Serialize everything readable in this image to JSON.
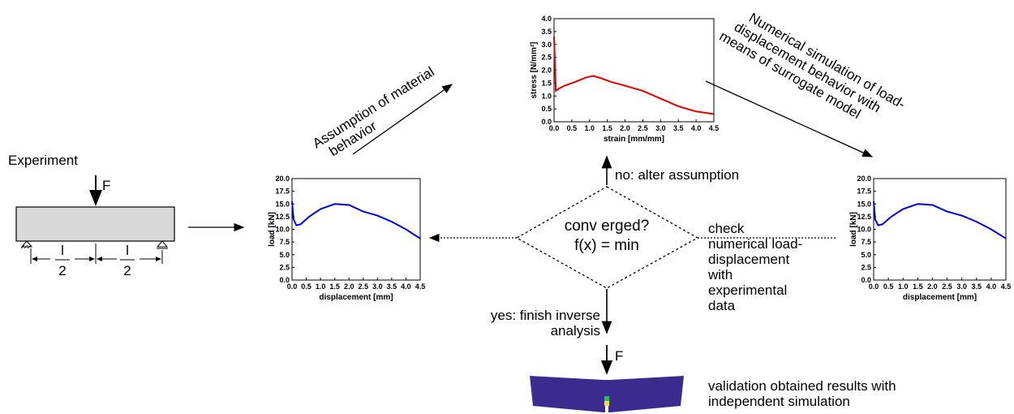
{
  "experiment": {
    "title": "Experiment",
    "force": "F",
    "spans": [
      {
        "numerator": "l",
        "denominator": "2"
      },
      {
        "numerator": "l",
        "denominator": "2"
      }
    ]
  },
  "steps": {
    "assumption": [
      "Assumption of material",
      "behavior"
    ],
    "simulation": [
      "Numerical simulation of load-",
      "displacement behavior with",
      "means of surrogate model"
    ],
    "no_branch": "no: alter assumption",
    "decision": [
      "conv erged?",
      "f(x) = min"
    ],
    "check": [
      "check",
      "numerical load-",
      "displacement",
      "with",
      "experimental",
      "data"
    ],
    "yes_branch": [
      "yes: finish inverse",
      "analysis"
    ],
    "validation_force": "F",
    "validation": [
      "validation obtained results with",
      "independent simulation"
    ]
  },
  "plots": [
    {
      "type": "line",
      "xlabel": "strain [mm/mm]",
      "ylabel": "stress [N/mm²]",
      "color": "#e00000",
      "x": [
        0,
        0.05,
        0.15,
        0.3,
        0.6,
        0.9,
        1.1,
        1.3,
        1.6,
        2.0,
        2.5,
        3.0,
        3.5,
        4.0,
        4.5
      ],
      "values": [
        3.3,
        1.2,
        1.3,
        1.4,
        1.55,
        1.72,
        1.78,
        1.7,
        1.55,
        1.4,
        1.2,
        0.9,
        0.6,
        0.4,
        0.3
      ],
      "xlim": [
        0,
        4.5
      ],
      "ylim": [
        0,
        4
      ],
      "xticks": [
        {
          "value": 0,
          "label": "0.0"
        },
        0.5,
        {
          "value": 1,
          "label": "1.0"
        },
        1.5,
        {
          "value": 2,
          "label": "2.0"
        },
        2.5,
        {
          "value": 3,
          "label": "3.0"
        },
        3.5,
        {
          "value": 4,
          "label": "4.0"
        },
        4.5
      ],
      "yticks": [
        {
          "value": 0,
          "label": "0.0"
        },
        0.5,
        {
          "value": 1,
          "label": "1.0"
        },
        1.5,
        {
          "value": 2,
          "label": "2.0"
        },
        2.5,
        {
          "value": 3,
          "label": "3.0"
        },
        3.5,
        {
          "value": 4,
          "label": "4.0"
        }
      ]
    },
    {
      "type": "line",
      "xlabel": "displacement [mm]",
      "ylabel": "load [kN]",
      "color": "#0000dd",
      "x": [
        0,
        0.05,
        0.15,
        0.3,
        0.6,
        1.0,
        1.5,
        2.0,
        2.5,
        3.0,
        3.5,
        4.0,
        4.5
      ],
      "values": [
        15.5,
        12,
        10.8,
        11,
        12.5,
        14,
        15,
        14.8,
        13.5,
        12.7,
        11.5,
        10,
        8.2
      ],
      "xlim": [
        0,
        4.5
      ],
      "ylim": [
        0,
        20
      ],
      "xticks": [
        {
          "value": 0,
          "label": "0.0"
        },
        0.5,
        {
          "value": 1,
          "label": "1.0"
        },
        1.5,
        {
          "value": 2,
          "label": "2.0"
        },
        2.5,
        {
          "value": 3,
          "label": "3.0"
        },
        3.5,
        {
          "value": 4,
          "label": "4.0"
        },
        4.5
      ],
      "yticks": [
        {
          "value": 0,
          "label": "0.0"
        },
        2.5,
        {
          "value": 5,
          "label": "5.0"
        },
        7.5,
        {
          "value": 10,
          "label": "10.0"
        },
        12.5,
        {
          "value": 15,
          "label": "15.0"
        },
        17.5,
        {
          "value": 20,
          "label": "20.0"
        }
      ]
    },
    {
      "type": "line",
      "xlabel": "displacement [mm]",
      "ylabel": "load [kN]",
      "color": "#0000dd",
      "x": [
        0,
        0.05,
        0.15,
        0.3,
        0.6,
        1.0,
        1.5,
        2.0,
        2.5,
        3.0,
        3.5,
        4.0,
        4.5
      ],
      "values": [
        15.5,
        12,
        10.8,
        11,
        12.5,
        14,
        15,
        14.8,
        13.5,
        12.7,
        11.5,
        10,
        8.2
      ],
      "xlim": [
        0,
        4.5
      ],
      "ylim": [
        0,
        20
      ],
      "xticks": [
        {
          "value": 0,
          "label": "0.0"
        },
        0.5,
        {
          "value": 1,
          "label": "1.0"
        },
        1.5,
        {
          "value": 2,
          "label": "2.0"
        },
        2.5,
        {
          "value": 3,
          "label": "3.0"
        },
        3.5,
        {
          "value": 4,
          "label": "4.0"
        },
        4.5
      ],
      "yticks": [
        {
          "value": 0,
          "label": "0.0"
        },
        2.5,
        {
          "value": 5,
          "label": "5.0"
        },
        7.5,
        {
          "value": 10,
          "label": "10.0"
        },
        12.5,
        {
          "value": 15,
          "label": "15.0"
        },
        17.5,
        {
          "value": 20,
          "label": "20.0"
        }
      ]
    }
  ]
}
